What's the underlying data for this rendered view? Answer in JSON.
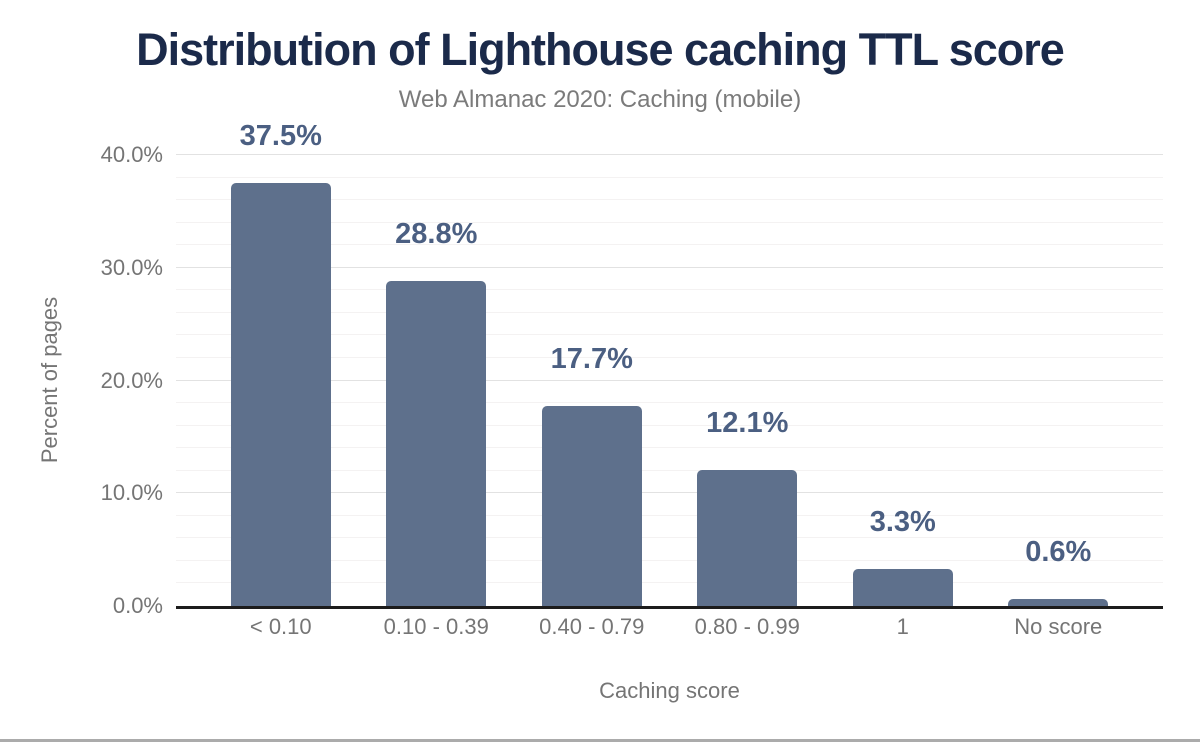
{
  "page": {
    "background": "#ffffff",
    "bottom_border_color": "#ababab"
  },
  "chart_data": {
    "type": "bar",
    "title": "Distribution of Lighthouse caching TTL score",
    "subtitle": "Web Almanac 2020: Caching (mobile)",
    "xlabel": "Caching score",
    "ylabel": "Percent of pages",
    "categories": [
      "< 0.10",
      "0.10 - 0.39",
      "0.40 - 0.79",
      "0.80 - 0.99",
      "1",
      "No score"
    ],
    "values": [
      37.5,
      28.8,
      17.7,
      12.1,
      3.3,
      0.6
    ],
    "value_labels": [
      "37.5%",
      "28.8%",
      "17.7%",
      "12.1%",
      "3.3%",
      "0.6%"
    ],
    "ylim": [
      0,
      40
    ],
    "y_ticks": [
      {
        "value": 40,
        "label": "40.0%"
      },
      {
        "value": 30,
        "label": "30.0%"
      },
      {
        "value": 20,
        "label": "20.0%"
      },
      {
        "value": 10,
        "label": "10.0%"
      },
      {
        "value": 0,
        "label": "0.0%"
      }
    ],
    "minor_grid_step": 2,
    "major_grid_step": 10,
    "grid": "horizontal",
    "legend": "none",
    "colors": {
      "bar": "#5e708c",
      "value_label": "#4b5f82",
      "title": "#1b2a4a",
      "subtitle": "#7b7b7b",
      "axis_text": "#757575",
      "axis_line": "#1c1c1c",
      "gridline_major": "#e2e2e2",
      "gridline_minor": "#f4f2f2"
    }
  }
}
